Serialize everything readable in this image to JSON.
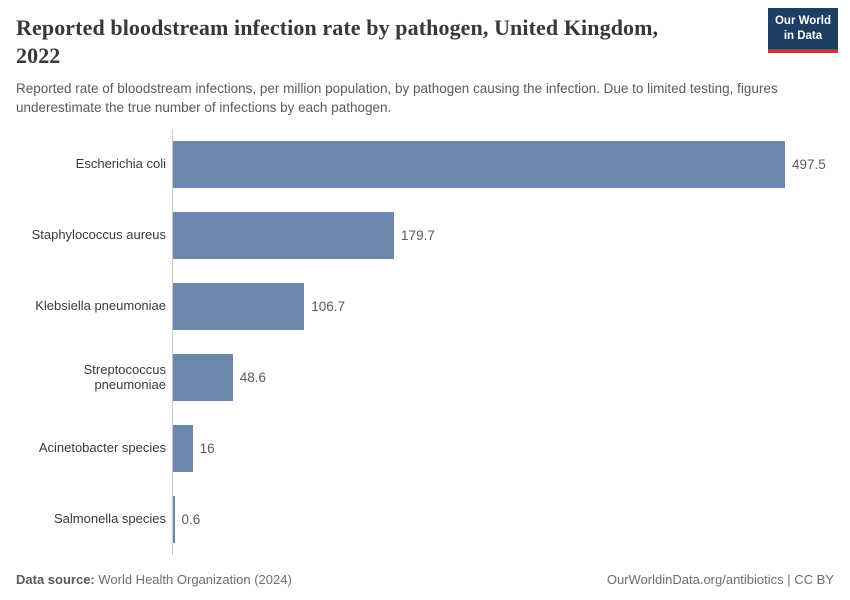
{
  "header": {
    "title": "Reported bloodstream infection rate by pathogen, United Kingdom, 2022",
    "title_line1": "Reported bloodstream infection rate by pathogen, United Kingdom,",
    "title_line2": "2022",
    "subtitle": "Reported rate of bloodstream infections, per million population, by pathogen causing the infection. Due to limited testing, figures underestimate the true number of infections by each pathogen.",
    "logo": {
      "line1": "Our World",
      "line2": "in Data"
    }
  },
  "chart_data": {
    "type": "bar",
    "orientation": "horizontal",
    "title": "Reported bloodstream infection rate by pathogen, United Kingdom, 2022",
    "categories": [
      "Escherichia coli",
      "Staphylococcus aureus",
      "Klebsiella pneumoniae",
      "Streptococcus pneumoniae",
      "Acinetobacter species",
      "Salmonella species"
    ],
    "values": [
      497.5,
      179.7,
      106.7,
      48.6,
      16,
      0.6
    ],
    "value_labels": [
      "497.5",
      "179.7",
      "106.7",
      "48.6",
      "16",
      "0.6"
    ],
    "xlabel": "",
    "ylabel": "",
    "xlim": [
      0,
      500
    ],
    "grid": false,
    "legend": "none",
    "bar_color": "#6c87ae"
  },
  "footer": {
    "datasource_label": "Data source:",
    "datasource_value": " World Health Organization (2024)",
    "attribution": "OurWorldinData.org/antibiotics | CC BY"
  },
  "colors": {
    "bar": "#6c87ae",
    "axis_line": "#c6cdd4",
    "title_text": "#383838",
    "subtitle_text": "#5b5b5b",
    "logo_navy": "#1d3d63",
    "logo_red": "#cd303b"
  }
}
